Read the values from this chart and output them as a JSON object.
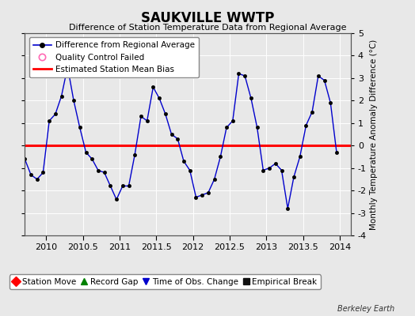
{
  "title": "SAUKVILLE WWTP",
  "subtitle": "Difference of Station Temperature Data from Regional Average",
  "ylabel_right": "Monthly Temperature Anomaly Difference (°C)",
  "background_color": "#e8e8e8",
  "plot_bg_color": "#e8e8e8",
  "bias_value": 0.0,
  "ylim": [
    -4,
    5
  ],
  "xlim": [
    2009.71,
    2014.15
  ],
  "xtick_labels": [
    "2010",
    "2010.5",
    "2011",
    "2011.5",
    "2012",
    "2012.5",
    "2013",
    "2013.5",
    "2014"
  ],
  "xtick_values": [
    2010,
    2010.5,
    2011,
    2011.5,
    2012,
    2012.5,
    2013,
    2013.5,
    2014
  ],
  "ytick_values": [
    -4,
    -3,
    -2,
    -1,
    0,
    1,
    2,
    3,
    4,
    5
  ],
  "line_color": "#0000cc",
  "marker_color": "#000000",
  "bias_color": "#ff0000",
  "times": [
    2009.708,
    2009.792,
    2009.875,
    2009.958,
    2010.042,
    2010.125,
    2010.208,
    2010.292,
    2010.375,
    2010.458,
    2010.542,
    2010.625,
    2010.708,
    2010.792,
    2010.875,
    2010.958,
    2011.042,
    2011.125,
    2011.208,
    2011.292,
    2011.375,
    2011.458,
    2011.542,
    2011.625,
    2011.708,
    2011.792,
    2011.875,
    2011.958,
    2012.042,
    2012.125,
    2012.208,
    2012.292,
    2012.375,
    2012.458,
    2012.542,
    2012.625,
    2012.708,
    2012.792,
    2012.875,
    2012.958,
    2013.042,
    2013.125,
    2013.208,
    2013.292,
    2013.375,
    2013.458,
    2013.542,
    2013.625,
    2013.708,
    2013.792,
    2013.875,
    2013.958
  ],
  "values": [
    -0.6,
    -1.3,
    -1.5,
    -1.2,
    1.1,
    1.4,
    2.2,
    3.5,
    2.0,
    0.8,
    -0.3,
    -0.6,
    -1.1,
    -1.2,
    -1.8,
    -2.4,
    -1.8,
    -1.8,
    -0.4,
    1.3,
    1.1,
    2.6,
    2.1,
    1.4,
    0.5,
    0.3,
    -0.7,
    -1.1,
    -2.3,
    -2.2,
    -2.1,
    -1.5,
    -0.5,
    0.8,
    1.1,
    3.2,
    3.1,
    2.1,
    0.8,
    -1.1,
    -1.0,
    -0.8,
    -1.1,
    -2.8,
    -1.4,
    -0.5,
    0.9,
    1.5,
    3.1,
    2.9,
    1.9,
    -0.3
  ],
  "legend1_items": [
    {
      "label": "Difference from Regional Average",
      "color": "#0000cc",
      "marker": "o"
    },
    {
      "label": "Quality Control Failed",
      "color": "#ff69b4",
      "marker": "o"
    },
    {
      "label": "Estimated Station Mean Bias",
      "color": "#ff0000"
    }
  ],
  "legend2_items": [
    {
      "label": "Station Move",
      "color": "#ff0000",
      "marker": "D"
    },
    {
      "label": "Record Gap",
      "color": "#008000",
      "marker": "^"
    },
    {
      "label": "Time of Obs. Change",
      "color": "#0000cc",
      "marker": "v"
    },
    {
      "label": "Empirical Break",
      "color": "#111111",
      "marker": "s"
    }
  ],
  "watermark": "Berkeley Earth"
}
